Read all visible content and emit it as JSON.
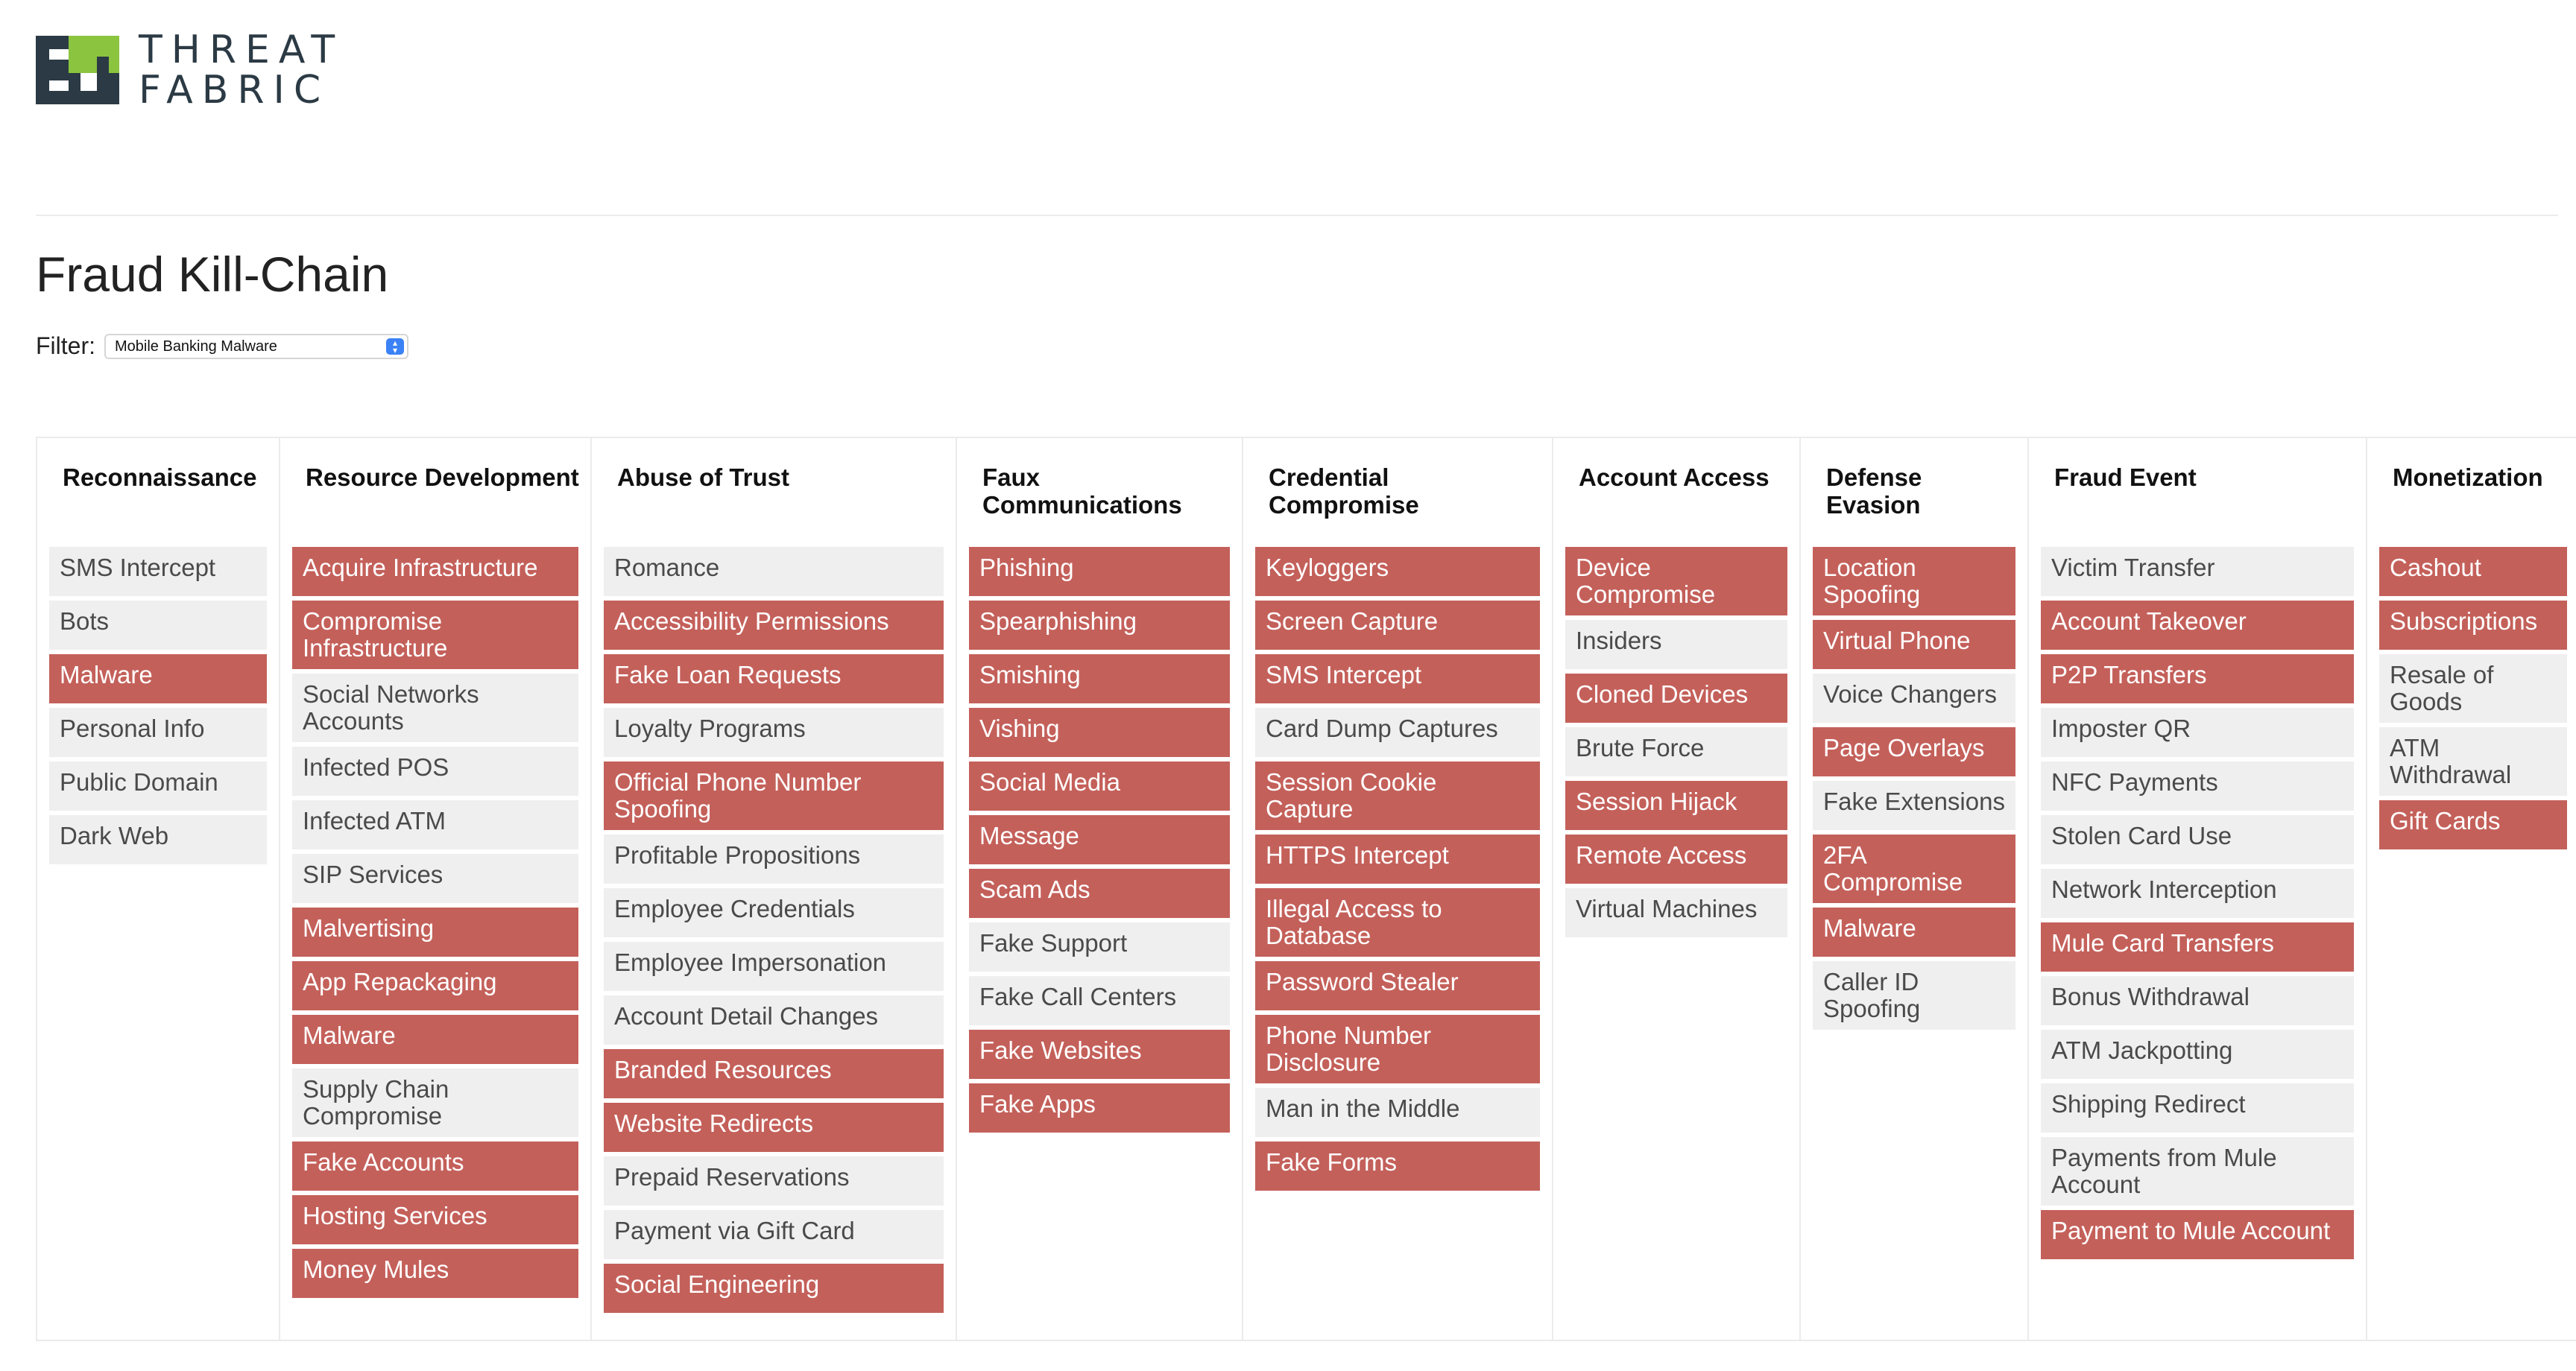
{
  "brand": {
    "line1": "THREAT",
    "line2": "FABRIC"
  },
  "page_title": "Fraud Kill-Chain",
  "filter": {
    "label": "Filter:",
    "value": "Mobile Banking Malware"
  },
  "colors": {
    "highlight": "#c4605a",
    "neutral": "#efefef",
    "logo_dark": "#2b3a44",
    "logo_green": "#8bc43f"
  },
  "columns": [
    {
      "title": "Reconnaissance",
      "items": [
        {
          "label": "SMS Intercept",
          "hl": false
        },
        {
          "label": "Bots",
          "hl": false
        },
        {
          "label": "Malware",
          "hl": true
        },
        {
          "label": "Personal Info",
          "hl": false
        },
        {
          "label": "Public Domain",
          "hl": false
        },
        {
          "label": "Dark Web",
          "hl": false
        }
      ]
    },
    {
      "title": "Resource Development",
      "items": [
        {
          "label": "Acquire Infrastructure",
          "hl": true
        },
        {
          "label": "Compromise Infrastructure",
          "hl": true
        },
        {
          "label": "Social Networks Accounts",
          "hl": false
        },
        {
          "label": "Infected POS",
          "hl": false
        },
        {
          "label": "Infected ATM",
          "hl": false
        },
        {
          "label": "SIP Services",
          "hl": false
        },
        {
          "label": "Malvertising",
          "hl": true
        },
        {
          "label": "App Repackaging",
          "hl": true
        },
        {
          "label": "Malware",
          "hl": true
        },
        {
          "label": "Supply Chain Compromise",
          "hl": false
        },
        {
          "label": "Fake Accounts",
          "hl": true
        },
        {
          "label": "Hosting Services",
          "hl": true
        },
        {
          "label": "Money Mules",
          "hl": true
        }
      ]
    },
    {
      "title": "Abuse of Trust",
      "items": [
        {
          "label": "Romance",
          "hl": false
        },
        {
          "label": "Accessibility Permissions",
          "hl": true
        },
        {
          "label": "Fake Loan Requests",
          "hl": true
        },
        {
          "label": "Loyalty Programs",
          "hl": false
        },
        {
          "label": "Official Phone Number Spoofing",
          "hl": true
        },
        {
          "label": "Profitable Propositions",
          "hl": false
        },
        {
          "label": "Employee Credentials",
          "hl": false
        },
        {
          "label": "Employee Impersonation",
          "hl": false
        },
        {
          "label": "Account Detail Changes",
          "hl": false
        },
        {
          "label": "Branded Resources",
          "hl": true
        },
        {
          "label": "Website Redirects",
          "hl": true
        },
        {
          "label": "Prepaid Reservations",
          "hl": false
        },
        {
          "label": "Payment via Gift Card",
          "hl": false
        },
        {
          "label": "Social Engineering",
          "hl": true
        }
      ]
    },
    {
      "title": "Faux Communications",
      "items": [
        {
          "label": "Phishing",
          "hl": true
        },
        {
          "label": "Spearphishing",
          "hl": true
        },
        {
          "label": "Smishing",
          "hl": true
        },
        {
          "label": "Vishing",
          "hl": true
        },
        {
          "label": "Social Media",
          "hl": true
        },
        {
          "label": "Message",
          "hl": true
        },
        {
          "label": "Scam Ads",
          "hl": true
        },
        {
          "label": "Fake Support",
          "hl": false
        },
        {
          "label": "Fake Call Centers",
          "hl": false
        },
        {
          "label": "Fake Websites",
          "hl": true
        },
        {
          "label": "Fake Apps",
          "hl": true
        }
      ]
    },
    {
      "title": "Credential Compromise",
      "items": [
        {
          "label": "Keyloggers",
          "hl": true
        },
        {
          "label": "Screen Capture",
          "hl": true
        },
        {
          "label": "SMS Intercept",
          "hl": true
        },
        {
          "label": "Card Dump Captures",
          "hl": false
        },
        {
          "label": "Session Cookie Capture",
          "hl": true
        },
        {
          "label": "HTTPS Intercept",
          "hl": true
        },
        {
          "label": "Illegal Access to Database",
          "hl": true
        },
        {
          "label": "Password Stealer",
          "hl": true
        },
        {
          "label": "Phone Number Disclosure",
          "hl": true
        },
        {
          "label": "Man in the Middle",
          "hl": false
        },
        {
          "label": "Fake Forms",
          "hl": true
        }
      ]
    },
    {
      "title": "Account Access",
      "items": [
        {
          "label": "Device Compromise",
          "hl": true
        },
        {
          "label": "Insiders",
          "hl": false
        },
        {
          "label": "Cloned Devices",
          "hl": true
        },
        {
          "label": "Brute Force",
          "hl": false
        },
        {
          "label": "Session Hijack",
          "hl": true
        },
        {
          "label": "Remote Access",
          "hl": true
        },
        {
          "label": "Virtual Machines",
          "hl": false
        }
      ]
    },
    {
      "title": "Defense Evasion",
      "items": [
        {
          "label": "Location Spoofing",
          "hl": true
        },
        {
          "label": "Virtual Phone",
          "hl": true
        },
        {
          "label": "Voice Changers",
          "hl": false
        },
        {
          "label": "Page Overlays",
          "hl": true
        },
        {
          "label": "Fake Extensions",
          "hl": false
        },
        {
          "label": "2FA Compromise",
          "hl": true
        },
        {
          "label": "Malware",
          "hl": true
        },
        {
          "label": "Caller ID Spoofing",
          "hl": false
        }
      ]
    },
    {
      "title": "Fraud Event",
      "items": [
        {
          "label": "Victim Transfer",
          "hl": false
        },
        {
          "label": "Account Takeover",
          "hl": true
        },
        {
          "label": "P2P Transfers",
          "hl": true
        },
        {
          "label": "Imposter QR",
          "hl": false
        },
        {
          "label": "NFC Payments",
          "hl": false
        },
        {
          "label": "Stolen Card Use",
          "hl": false
        },
        {
          "label": "Network Interception",
          "hl": false
        },
        {
          "label": "Mule Card Transfers",
          "hl": true
        },
        {
          "label": "Bonus Withdrawal",
          "hl": false
        },
        {
          "label": "ATM Jackpotting",
          "hl": false
        },
        {
          "label": "Shipping Redirect",
          "hl": false
        },
        {
          "label": "Payments from Mule Account",
          "hl": false
        },
        {
          "label": "Payment to Mule Account",
          "hl": true
        }
      ]
    },
    {
      "title": "Monetization",
      "items": [
        {
          "label": "Cashout",
          "hl": true
        },
        {
          "label": "Subscriptions",
          "hl": true
        },
        {
          "label": "Resale of Goods",
          "hl": false
        },
        {
          "label": "ATM Withdrawal",
          "hl": false
        },
        {
          "label": "Gift Cards",
          "hl": true
        }
      ]
    }
  ]
}
